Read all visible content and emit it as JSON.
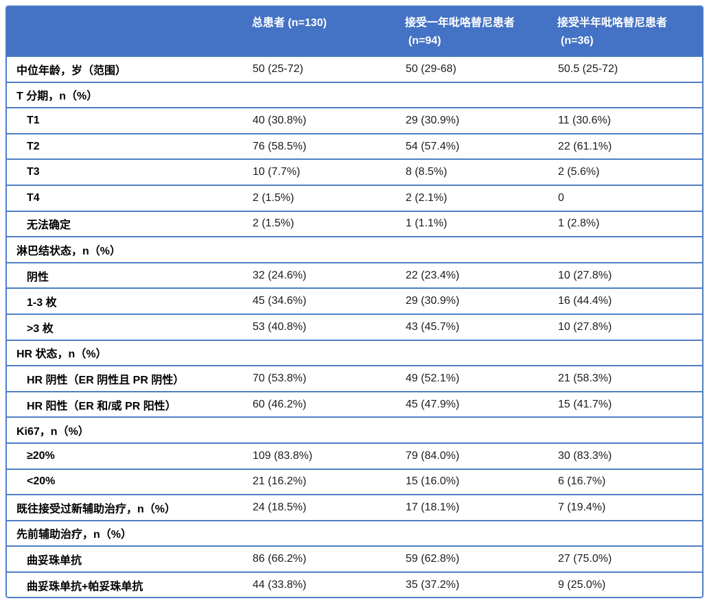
{
  "colors": {
    "header_bg": "#4472C4",
    "border": "#4C7DC4",
    "header_text": "#FFFFFF",
    "label_text": "#000000",
    "value_text": "#1B1B1B"
  },
  "table": {
    "header": {
      "col1": "",
      "col2": "总患者 (n=130)",
      "col3_line1": "接受一年吡咯替尼患者",
      "col3_line2": "(n=94)",
      "col4_line1": "接受半年吡咯替尼患者",
      "col4_line2": "(n=36)"
    },
    "rows": [
      {
        "label": "中位年龄，岁（范围）",
        "c": [
          "50 (25-72)",
          "50 (29-68)",
          "50.5 (25-72)"
        ]
      },
      {
        "label": "T 分期，n（%）",
        "c": [
          "",
          "",
          ""
        ]
      },
      {
        "label": "T1",
        "c": [
          "40 (30.8%)",
          "29 (30.9%)",
          "11 (30.6%)"
        ]
      },
      {
        "label": "T2",
        "c": [
          "76 (58.5%)",
          "54 (57.4%)",
          "22 (61.1%)"
        ]
      },
      {
        "label": "T3",
        "c": [
          "10 (7.7%)",
          "8 (8.5%)",
          "2 (5.6%)"
        ]
      },
      {
        "label": "T4",
        "c": [
          "2 (1.5%)",
          "2 (2.1%)",
          "0"
        ]
      },
      {
        "label": "无法确定",
        "c": [
          "2 (1.5%)",
          "1 (1.1%)",
          "1 (2.8%)"
        ]
      },
      {
        "label": "淋巴结状态，n（%）",
        "c": [
          "",
          "",
          ""
        ]
      },
      {
        "label": "阴性",
        "c": [
          "32 (24.6%)",
          "22 (23.4%)",
          "10 (27.8%)"
        ]
      },
      {
        "label": "1-3 枚",
        "c": [
          "45 (34.6%)",
          "29 (30.9%)",
          "16 (44.4%)"
        ]
      },
      {
        "label": ">3 枚",
        "c": [
          "53 (40.8%)",
          "43 (45.7%)",
          "10 (27.8%)"
        ]
      },
      {
        "label": "HR 状态，n（%）",
        "c": [
          "",
          "",
          ""
        ]
      },
      {
        "label": "HR 阴性（ER 阴性且 PR 阴性）",
        "c": [
          "70 (53.8%)",
          "49 (52.1%)",
          "21 (58.3%)"
        ]
      },
      {
        "label": "HR 阳性（ER 和/或 PR 阳性）",
        "c": [
          "60 (46.2%)",
          "45 (47.9%)",
          "15 (41.7%)"
        ]
      },
      {
        "label": "Ki67，n（%）",
        "c": [
          "",
          "",
          ""
        ]
      },
      {
        "label": "≥20%",
        "c": [
          "109 (83.8%)",
          "79 (84.0%)",
          "30 (83.3%)"
        ]
      },
      {
        "label": "<20%",
        "c": [
          "21 (16.2%)",
          "15 (16.0%)",
          "6 (16.7%)"
        ]
      },
      {
        "label": "既往接受过新辅助治疗，n（%）",
        "c": [
          "24 (18.5%)",
          "17 (18.1%)",
          "7 (19.4%)"
        ]
      },
      {
        "label": "先前辅助治疗，n（%）",
        "c": [
          "",
          "",
          ""
        ]
      },
      {
        "label": "曲妥珠单抗",
        "c": [
          "86 (66.2%)",
          "59 (62.8%)",
          "27 (75.0%)"
        ]
      },
      {
        "label": "曲妥珠单抗+帕妥珠单抗",
        "c": [
          "44 (33.8%)",
          "35 (37.2%)",
          "9 (25.0%)"
        ]
      }
    ]
  }
}
